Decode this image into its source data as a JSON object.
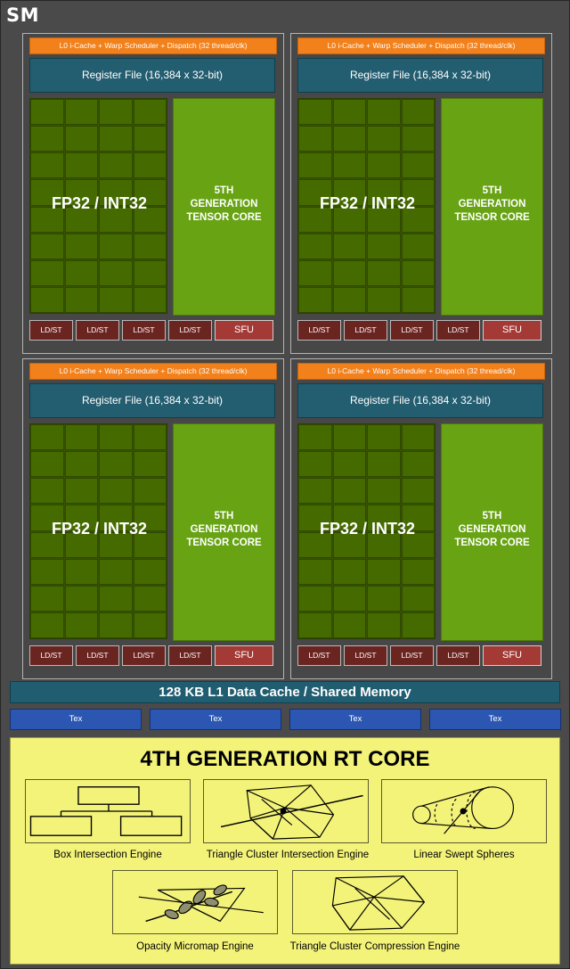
{
  "sm_title": "SM",
  "quadrant": {
    "scheduler_label": "L0 i-Cache + Warp Scheduler + Dispatch (32 thread/clk)",
    "register_label": "Register File (16,384 x 32-bit)",
    "fp_label": "FP32 / INT32",
    "tensor_lines": [
      "5TH",
      "GENERATION",
      "TENSOR CORE"
    ],
    "ldst_label": "LD/ST",
    "sfu_label": "SFU"
  },
  "l1_label": "128 KB L1 Data Cache / Shared Memory",
  "tex_labels": [
    "Tex",
    "Tex",
    "Tex",
    "Tex"
  ],
  "rt_core": {
    "title": "4TH GENERATION RT CORE",
    "engines": [
      {
        "label": "Box Intersection Engine",
        "icon": "box-hierarchy-icon"
      },
      {
        "label": "Triangle Cluster Intersection Engine",
        "icon": "triangle-cluster-ray-icon"
      },
      {
        "label": "Linear Swept Spheres",
        "icon": "swept-spheres-icon"
      },
      {
        "label": "Opacity Micromap Engine",
        "icon": "leaf-branch-icon"
      },
      {
        "label": "Triangle Cluster Compression Engine",
        "icon": "triangle-cluster-icon"
      }
    ]
  },
  "colors": {
    "sm_background": "#4a4a4a",
    "scheduler": "#f2801b",
    "register_file": "#235d70",
    "fp_grid": "#375300",
    "tensor_core": "#68a314",
    "ldst": "#6b2521",
    "sfu": "#a33a35",
    "l1_cache": "#215d70",
    "tex": "#2b57b3",
    "rt_core": "#f3f37a"
  }
}
